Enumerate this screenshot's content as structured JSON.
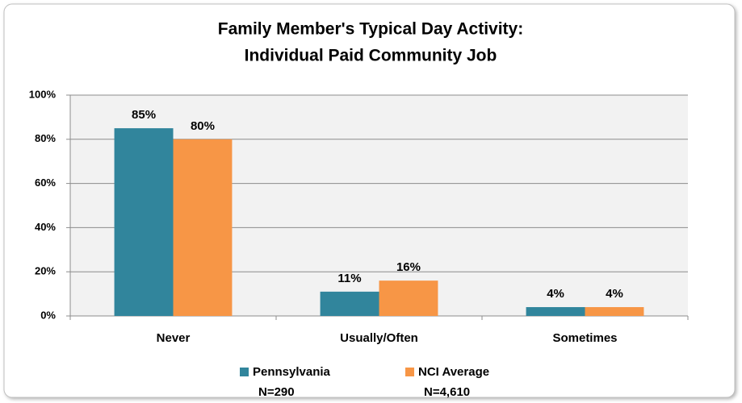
{
  "chart_data": {
    "type": "bar",
    "title": [
      "Family Member's Typical Day Activity:",
      "Individual Paid Community Job"
    ],
    "categories": [
      "Never",
      "Usually/Often",
      "Sometimes"
    ],
    "series": [
      {
        "name": "Pennsylvania",
        "sample": "N=290",
        "color": "#31859c",
        "values": [
          85,
          11,
          4
        ],
        "value_labels": [
          "85%",
          "11%",
          "4%"
        ]
      },
      {
        "name": "NCI Average",
        "sample": "N=4,610",
        "color": "#f79646",
        "values": [
          80,
          16,
          4
        ],
        "value_labels": [
          "80%",
          "16%",
          "4%"
        ]
      }
    ],
    "ylim": [
      0,
      100
    ],
    "yticks": [
      {
        "value": 0,
        "label": "0%"
      },
      {
        "value": 20,
        "label": "20%"
      },
      {
        "value": 40,
        "label": "40%"
      },
      {
        "value": 60,
        "label": "60%"
      },
      {
        "value": 80,
        "label": "80%"
      },
      {
        "value": 100,
        "label": "100%"
      }
    ],
    "grid": true,
    "legend": "bottom"
  }
}
